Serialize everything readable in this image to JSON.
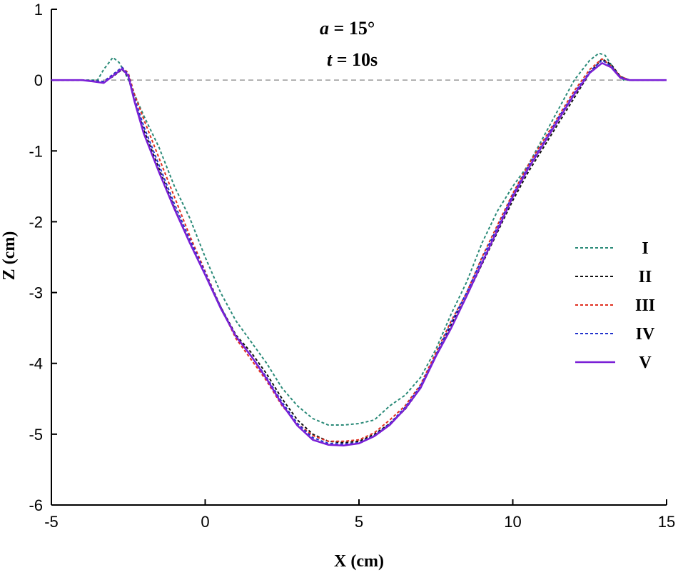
{
  "chart_data": {
    "type": "line",
    "title": "",
    "annotations": [
      {
        "var": "a",
        "rest": " = 15°"
      },
      {
        "var": "t",
        "rest": " = 10s"
      }
    ],
    "xlabel": "X (cm)",
    "ylabel": "Z (cm)",
    "xlim": [
      -5,
      15
    ],
    "ylim": [
      -6,
      1
    ],
    "xticks": [
      -5,
      0,
      5,
      10,
      15
    ],
    "yticks": [
      -6,
      -5,
      -4,
      -3,
      -2,
      -1,
      0,
      1
    ],
    "reference_line": {
      "y": 0,
      "style": "dashed",
      "color": "#999999"
    },
    "legend_position": "right",
    "series": [
      {
        "name": "I",
        "color": "#2a8a78",
        "style": "dotted",
        "x": [
          -5,
          -4,
          -3.5,
          -3.3,
          -3.0,
          -2.8,
          -2.6,
          -2.3,
          -2.0,
          -1.5,
          -1.0,
          -0.5,
          0.0,
          0.5,
          1.0,
          1.5,
          2.0,
          2.5,
          3.0,
          3.5,
          4.0,
          4.5,
          5.0,
          5.5,
          6.0,
          6.5,
          7.0,
          7.5,
          8.0,
          8.5,
          9.0,
          9.5,
          10.0,
          10.5,
          11.0,
          11.5,
          12.0,
          12.5,
          12.8,
          13.0,
          13.3,
          13.6,
          14.0,
          15.0
        ],
        "y": [
          0,
          0,
          0,
          0.15,
          0.32,
          0.25,
          0.1,
          -0.2,
          -0.5,
          -0.95,
          -1.5,
          -1.95,
          -2.5,
          -3.0,
          -3.4,
          -3.7,
          -4.0,
          -4.35,
          -4.6,
          -4.78,
          -4.87,
          -4.87,
          -4.85,
          -4.8,
          -4.6,
          -4.45,
          -4.2,
          -3.8,
          -3.3,
          -2.85,
          -2.3,
          -1.85,
          -1.5,
          -1.2,
          -0.8,
          -0.4,
          0.0,
          0.28,
          0.38,
          0.35,
          0.15,
          0,
          0,
          0
        ]
      },
      {
        "name": "II",
        "color": "#111111",
        "style": "dotted",
        "x": [
          -5,
          -4,
          -3.3,
          -3.0,
          -2.7,
          -2.5,
          -2.3,
          -2.0,
          -1.5,
          -1.0,
          -0.5,
          0.0,
          0.5,
          1.0,
          1.5,
          2.0,
          2.5,
          3.0,
          3.5,
          4.0,
          4.5,
          5.0,
          5.5,
          6.0,
          6.5,
          7.0,
          7.5,
          8.0,
          8.5,
          9.0,
          9.5,
          10.0,
          10.5,
          11.0,
          11.5,
          12.0,
          12.5,
          12.9,
          13.2,
          13.5,
          13.8,
          14.0,
          15.0
        ],
        "y": [
          0,
          0,
          -0.02,
          0.05,
          0.15,
          0.05,
          -0.3,
          -0.7,
          -1.25,
          -1.8,
          -2.3,
          -2.75,
          -3.2,
          -3.6,
          -3.85,
          -4.15,
          -4.5,
          -4.8,
          -5.0,
          -5.1,
          -5.12,
          -5.1,
          -5.0,
          -4.85,
          -4.65,
          -4.35,
          -3.9,
          -3.45,
          -3.05,
          -2.6,
          -2.15,
          -1.7,
          -1.3,
          -0.95,
          -0.6,
          -0.25,
          0.1,
          0.3,
          0.22,
          0.05,
          0,
          0,
          0
        ]
      },
      {
        "name": "III",
        "color": "#e03020",
        "style": "dotted",
        "x": [
          -5,
          -4,
          -3.3,
          -3.0,
          -2.7,
          -2.5,
          -2.3,
          -2.0,
          -1.5,
          -1.0,
          -0.5,
          0.0,
          0.5,
          1.0,
          1.5,
          2.0,
          2.5,
          3.0,
          3.5,
          4.0,
          4.5,
          5.0,
          5.5,
          6.0,
          6.5,
          7.0,
          7.5,
          8.0,
          8.5,
          9.0,
          9.5,
          10.0,
          10.5,
          11.0,
          11.5,
          12.0,
          12.5,
          12.9,
          13.2,
          13.5,
          13.8,
          14.0,
          15.0
        ],
        "y": [
          0,
          0,
          -0.02,
          0.08,
          0.18,
          0.1,
          -0.2,
          -0.55,
          -1.1,
          -1.65,
          -2.2,
          -2.7,
          -3.2,
          -3.65,
          -3.95,
          -4.25,
          -4.6,
          -4.85,
          -5.02,
          -5.1,
          -5.1,
          -5.08,
          -4.98,
          -4.8,
          -4.6,
          -4.3,
          -3.85,
          -3.4,
          -3.0,
          -2.5,
          -2.05,
          -1.6,
          -1.2,
          -0.85,
          -0.5,
          -0.15,
          0.15,
          0.3,
          0.2,
          0.05,
          0,
          0,
          0
        ]
      },
      {
        "name": "IV",
        "color": "#2233cc",
        "style": "dotted",
        "x": [
          -5,
          -4,
          -3.3,
          -3.0,
          -2.7,
          -2.5,
          -2.3,
          -2.0,
          -1.5,
          -1.0,
          -0.5,
          0.0,
          0.5,
          1.0,
          1.5,
          2.0,
          2.5,
          3.0,
          3.5,
          4.0,
          4.5,
          5.0,
          5.5,
          6.0,
          6.5,
          7.0,
          7.5,
          8.0,
          8.5,
          9.0,
          9.5,
          10.0,
          10.5,
          11.0,
          11.5,
          12.0,
          12.5,
          12.9,
          13.2,
          13.5,
          13.8,
          14.0,
          15.0
        ],
        "y": [
          0,
          0,
          -0.02,
          0.08,
          0.18,
          0.08,
          -0.25,
          -0.65,
          -1.2,
          -1.75,
          -2.25,
          -2.72,
          -3.2,
          -3.62,
          -3.9,
          -4.2,
          -4.55,
          -4.85,
          -5.05,
          -5.13,
          -5.14,
          -5.12,
          -5.02,
          -4.85,
          -4.62,
          -4.32,
          -3.88,
          -3.42,
          -3.0,
          -2.52,
          -2.08,
          -1.62,
          -1.22,
          -0.88,
          -0.52,
          -0.18,
          0.12,
          0.28,
          0.2,
          0.04,
          0,
          0,
          0
        ]
      },
      {
        "name": "V",
        "color": "#7a1fd6",
        "style": "solid",
        "x": [
          -5,
          -4,
          -3.3,
          -3.0,
          -2.7,
          -2.5,
          -2.3,
          -2.0,
          -1.5,
          -1.0,
          -0.5,
          0.0,
          0.5,
          1.0,
          1.5,
          2.0,
          2.5,
          3.0,
          3.5,
          4.0,
          4.5,
          5.0,
          5.5,
          6.0,
          6.5,
          7.0,
          7.5,
          8.0,
          8.5,
          9.0,
          9.5,
          10.0,
          10.5,
          11.0,
          11.5,
          12.0,
          12.5,
          12.9,
          13.2,
          13.5,
          13.8,
          14.0,
          15.0
        ],
        "y": [
          0,
          0,
          -0.04,
          0.06,
          0.16,
          0.06,
          -0.3,
          -0.75,
          -1.3,
          -1.82,
          -2.3,
          -2.75,
          -3.22,
          -3.62,
          -3.9,
          -4.22,
          -4.58,
          -4.88,
          -5.08,
          -5.15,
          -5.16,
          -5.13,
          -5.03,
          -4.87,
          -4.64,
          -4.35,
          -3.9,
          -3.5,
          -3.05,
          -2.58,
          -2.12,
          -1.65,
          -1.25,
          -0.9,
          -0.55,
          -0.2,
          0.1,
          0.24,
          0.18,
          0.03,
          0,
          0,
          0
        ]
      }
    ]
  }
}
